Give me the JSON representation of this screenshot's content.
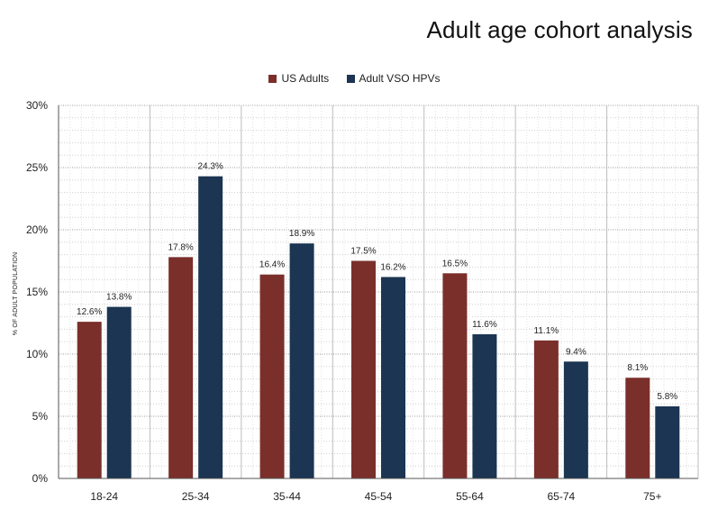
{
  "chart_data": {
    "type": "bar",
    "title": "Adult age cohort analysis",
    "ylabel": "% OF ADULT POPULATION",
    "xlabel": "",
    "categories": [
      "18-24",
      "25-34",
      "35-44",
      "45-54",
      "55-64",
      "65-74",
      "75+"
    ],
    "series": [
      {
        "name": "US Adults",
        "color": "#7a2f2b",
        "values": [
          12.6,
          17.8,
          16.4,
          17.5,
          16.5,
          11.1,
          8.1
        ],
        "labels": [
          "12.6%",
          "17.8%",
          "16.4%",
          "17.5%",
          "16.5%",
          "11.1%",
          "8.1%"
        ]
      },
      {
        "name": "Adult VSO HPVs",
        "color": "#1b3552",
        "values": [
          13.8,
          24.3,
          18.9,
          16.2,
          11.6,
          9.4,
          5.8
        ],
        "labels": [
          "13.8%",
          "24.3%",
          "18.9%",
          "16.2%",
          "11.6%",
          "9.4%",
          "5.8%"
        ]
      }
    ],
    "ylim": [
      0,
      30
    ],
    "yticks": [
      0,
      5,
      10,
      15,
      20,
      25,
      30
    ],
    "ytick_labels": [
      "0%",
      "5%",
      "10%",
      "15%",
      "20%",
      "25%",
      "30%"
    ],
    "grid": true,
    "legend_position": "top-center"
  }
}
